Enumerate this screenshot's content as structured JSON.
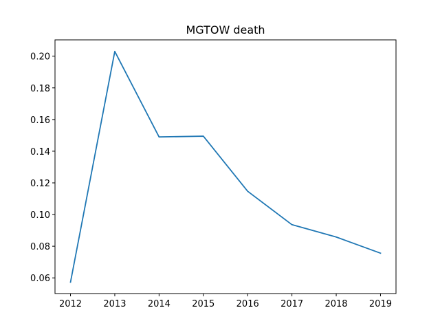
{
  "chart_data": {
    "type": "line",
    "title": "MGTOW death",
    "xlabel": "",
    "ylabel": "",
    "x": [
      2012,
      2013,
      2014,
      2015,
      2016,
      2017,
      2018,
      2019
    ],
    "xticks": [
      "2012",
      "2013",
      "2014",
      "2015",
      "2016",
      "2017",
      "2018",
      "2019"
    ],
    "yticks": [
      "0.06",
      "0.08",
      "0.10",
      "0.12",
      "0.14",
      "0.16",
      "0.18",
      "0.20"
    ],
    "ylim": [
      0.0501,
      0.2103
    ],
    "xlim": [
      2011.65,
      2019.35
    ],
    "series": [
      {
        "name": "",
        "color": "#1f77b4",
        "values": [
          0.0573,
          0.203,
          0.149,
          0.1495,
          0.1147,
          0.0936,
          0.0858,
          0.0756
        ]
      }
    ],
    "grid": false,
    "legend": "none"
  }
}
